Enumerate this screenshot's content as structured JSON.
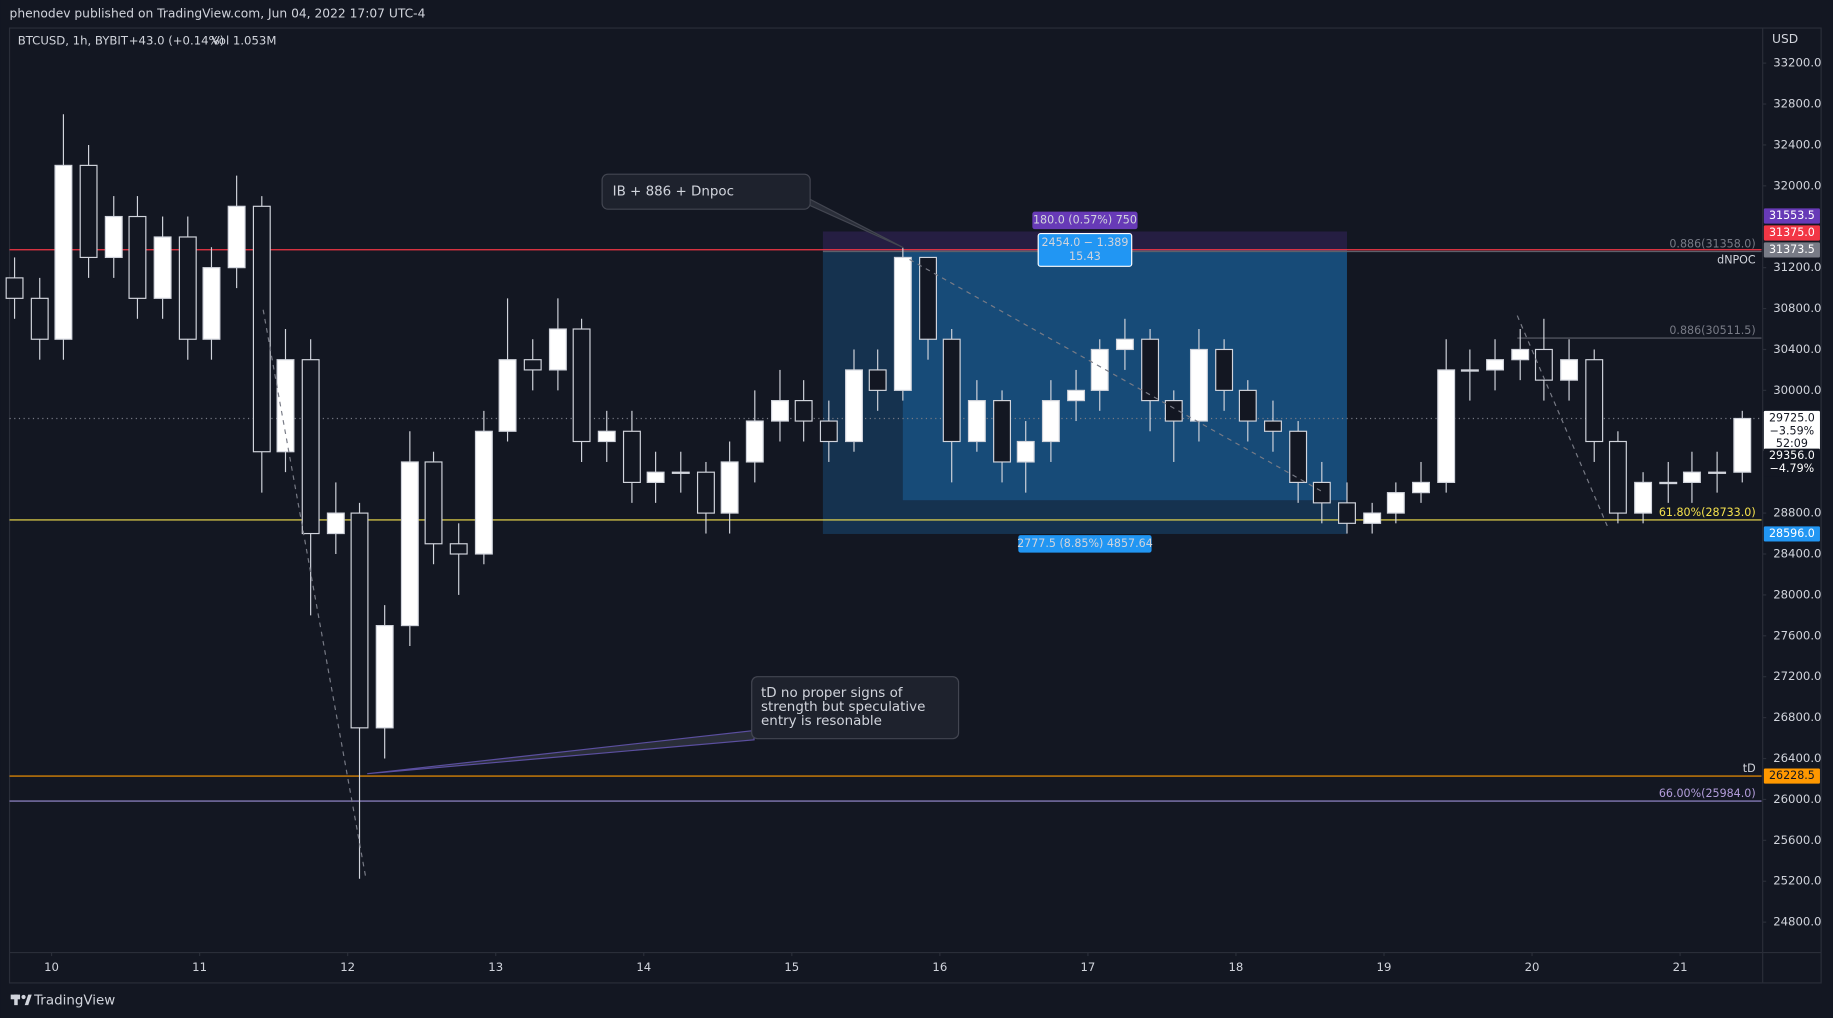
{
  "header": {
    "publisher": "phenodev published on TradingView.com, Jun 04, 2022 17:07 UTC-4",
    "brand": "TradingView"
  },
  "chart_data": {
    "type": "candlestick",
    "symbol": "BTCUSD, 1h, BYBIT",
    "change": "+43.0 (+0.14%)",
    "volume": "Vol 1.053M",
    "currency": "USD",
    "up_color": "#ffffff",
    "down_color": "#131722",
    "wick_color": "#d1d4dc",
    "x": [
      9.75,
      9.92,
      10.08,
      10.25,
      10.42,
      10.58,
      10.75,
      10.92,
      11.08,
      11.25,
      11.42,
      11.58,
      11.75,
      11.92,
      12.08,
      12.25,
      12.42,
      12.58,
      12.75,
      12.92,
      13.08,
      13.25,
      13.42,
      13.58,
      13.75,
      13.92,
      14.08,
      14.25,
      14.42,
      14.58,
      14.75,
      14.92,
      15.08,
      15.25,
      15.42,
      15.58,
      15.75,
      15.92,
      16.08,
      16.25,
      16.42,
      16.58,
      16.75,
      16.92,
      17.08,
      17.25,
      17.42,
      17.58,
      17.75,
      17.92,
      18.08,
      18.25,
      18.42,
      18.58,
      18.75,
      18.92,
      19.08,
      19.25,
      19.42,
      19.58,
      19.75,
      19.92,
      20.08,
      20.25,
      20.42,
      20.58,
      20.75,
      20.92,
      21.08,
      21.25,
      21.42
    ],
    "open": [
      31100,
      30900,
      30500,
      32200,
      31300,
      31700,
      30900,
      31500,
      30500,
      31200,
      31800,
      29400,
      30300,
      28600,
      28800,
      26700,
      27700,
      29300,
      28500,
      28400,
      29600,
      30300,
      30200,
      30600,
      29500,
      29600,
      29100,
      29200,
      29200,
      28800,
      29300,
      29700,
      29900,
      29700,
      29500,
      30200,
      30000,
      31300,
      30500,
      29500,
      29900,
      29300,
      29500,
      29900,
      30000,
      30400,
      30500,
      29900,
      29700,
      30400,
      30000,
      29700,
      29600,
      29100,
      28900,
      28700,
      28800,
      29000,
      29100,
      30200,
      30200,
      30300,
      30400,
      30100,
      30300,
      29500,
      28800,
      29100,
      29100,
      29200,
      29200
    ],
    "high": [
      31300,
      31100,
      32700,
      32400,
      31900,
      31900,
      31700,
      31700,
      31400,
      32100,
      31900,
      30600,
      30500,
      29100,
      28900,
      27900,
      29600,
      29400,
      28700,
      29800,
      30900,
      30500,
      30900,
      30700,
      29800,
      29800,
      29400,
      29400,
      29300,
      29500,
      30000,
      30200,
      30100,
      29900,
      30400,
      30400,
      31400,
      31300,
      30600,
      30100,
      30000,
      29700,
      30100,
      30200,
      30500,
      30700,
      30600,
      30000,
      30600,
      30500,
      30100,
      29900,
      29700,
      29300,
      29100,
      28900,
      29100,
      29300,
      30500,
      30400,
      30500,
      30600,
      30700,
      30500,
      30400,
      29600,
      29200,
      29300,
      29400,
      29400,
      29800
    ],
    "low": [
      30700,
      30300,
      30300,
      31100,
      31100,
      30700,
      30700,
      30300,
      30300,
      31000,
      29000,
      29200,
      27800,
      28400,
      25224,
      26400,
      27500,
      28300,
      28000,
      28300,
      29500,
      30000,
      30000,
      29300,
      29300,
      28900,
      28900,
      29000,
      28600,
      28600,
      29100,
      29500,
      29500,
      29300,
      29400,
      29800,
      29900,
      30300,
      29100,
      29400,
      29100,
      29000,
      29300,
      29700,
      29800,
      30200,
      29600,
      29300,
      29500,
      29800,
      29500,
      29400,
      28900,
      28700,
      28600,
      28600,
      28700,
      28900,
      29000,
      29900,
      30000,
      30100,
      29900,
      29900,
      29300,
      28700,
      28700,
      28900,
      28900,
      29000,
      29100
    ],
    "close": [
      30900,
      30500,
      32200,
      31300,
      31700,
      30900,
      31500,
      30500,
      31200,
      31800,
      29400,
      30300,
      28600,
      28800,
      26700,
      27700,
      29300,
      28500,
      28400,
      29600,
      30300,
      30200,
      30600,
      29500,
      29600,
      29100,
      29200,
      29200,
      28800,
      29300,
      29700,
      29900,
      29700,
      29500,
      30200,
      30000,
      31300,
      30500,
      29500,
      29900,
      29300,
      29500,
      29900,
      30000,
      30400,
      30500,
      29900,
      29700,
      30400,
      30000,
      29700,
      29600,
      29100,
      28900,
      28700,
      28800,
      29000,
      29100,
      30200,
      30200,
      30300,
      30400,
      30100,
      30300,
      29500,
      28800,
      29100,
      29100,
      29200,
      29200,
      29725
    ],
    "xlim": [
      9.716,
      21.55
    ],
    "xticks": [
      10,
      11,
      12,
      13,
      14,
      15,
      16,
      17,
      18,
      19,
      20,
      21
    ],
    "ylim": [
      24217,
      33543
    ],
    "yticks": [
      {
        "value": 33200,
        "label": "33200.0"
      },
      {
        "value": 32800,
        "label": "32800.0"
      },
      {
        "value": 32400,
        "label": "32400.0"
      },
      {
        "value": 32000,
        "label": "32000.0"
      },
      {
        "value": 31200,
        "label": "31200.0"
      },
      {
        "value": 30800,
        "label": "30800.0"
      },
      {
        "value": 30400,
        "label": "30400.0"
      },
      {
        "value": 30000,
        "label": "30000.0"
      },
      {
        "value": 28800,
        "label": "28800.0"
      },
      {
        "value": 28400,
        "label": "28400.0"
      },
      {
        "value": 28000,
        "label": "28000.0"
      },
      {
        "value": 27600,
        "label": "27600.0"
      },
      {
        "value": 27200,
        "label": "27200.0"
      },
      {
        "value": 26800,
        "label": "26800.0"
      },
      {
        "value": 26400,
        "label": "26400.0"
      },
      {
        "value": 26000,
        "label": "26000.0"
      },
      {
        "value": 25600,
        "label": "25600.0"
      },
      {
        "value": 25200,
        "label": "25200.0"
      },
      {
        "value": 24800,
        "label": "24800.0"
      }
    ],
    "grid": false,
    "hlines": [
      {
        "value": 31375,
        "color": "#f23645",
        "label": "dNPOC",
        "label_color": "#d1d4dc",
        "label_side": "below"
      },
      {
        "value": 31358,
        "color": "#5d606b",
        "x_start": 15.21,
        "label": "0.886(31358.0)",
        "label_color": "#787b86",
        "label_side": "above"
      },
      {
        "value": 30511.5,
        "color": "#5d606b",
        "x_start": 19.9,
        "label": "0.886(30511.5)",
        "label_color": "#787b86",
        "label_side": "above"
      },
      {
        "value": 29725,
        "color": "#787b86",
        "dashed": true
      },
      {
        "value": 28733,
        "color": "#f5e14d",
        "label": "61.80%(28733.0)",
        "label_color": "#f5e14d",
        "label_side": "above"
      },
      {
        "value": 26228.5,
        "color": "#ff9800",
        "label": "tD",
        "label_color": "#d1d4dc",
        "label_side": "above"
      },
      {
        "value": 25984,
        "color": "#9c8fd6",
        "label": "66.00%(25984.0)",
        "label_color": "#b39ddb",
        "label_side": "above"
      }
    ],
    "position": {
      "stop": 31553.5,
      "entry": 31373.5,
      "target": 28596,
      "reached": 28926,
      "x_start": 15.21,
      "x_reached": 15.75,
      "x_end": 18.75,
      "stop_label": "180.0 (0.57%) 750",
      "entry_label": [
        "2454.0 − 1.389",
        "15.43"
      ],
      "target_label": "2777.5 (8.85%) 4857.64"
    },
    "price_tags": [
      {
        "value": 31553.5,
        "label": "31553.5",
        "color": "#673ab7",
        "text_color": "#ffffff"
      },
      {
        "value": 31375,
        "label": "31375.0",
        "color": "#f23645",
        "text_color": "#ffffff"
      },
      {
        "value": 31373.5,
        "label": "31373.5",
        "color": "#787b86",
        "text_color": "#ffffff"
      },
      {
        "value": 29725,
        "label": "29725.0",
        "extra": [
          "−3.59%",
          "52:09"
        ],
        "color": "#ffffff",
        "text_color": "#131722"
      },
      {
        "value": 29356,
        "label": "29356.0",
        "extra": [
          "−4.79%"
        ],
        "color": "#131722",
        "text_color": "#ffffff"
      },
      {
        "value": 28596,
        "label": "28596.0",
        "color": "#2196f3",
        "text_color": "#ffffff"
      },
      {
        "value": 26228.5,
        "label": "26228.5",
        "color": "#ff9800",
        "text_color": "#131722"
      }
    ],
    "annotations": [
      {
        "lines": [
          "IB + 886 + Dnpoc"
        ]
      },
      {
        "lines": [
          "tD no proper signs of",
          "strength but speculative",
          "entry is resonable"
        ]
      }
    ]
  }
}
